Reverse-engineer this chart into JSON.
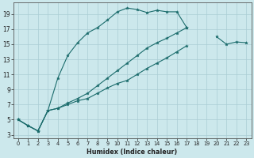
{
  "xlabel": "Humidex (Indice chaleur)",
  "bg_color": "#cce8ec",
  "grid_color": "#aacdd4",
  "line_color": "#1a6b6b",
  "xlim": [
    -0.5,
    23.5
  ],
  "ylim": [
    2.5,
    20.5
  ],
  "yticks": [
    3,
    5,
    7,
    9,
    11,
    13,
    15,
    17,
    19
  ],
  "xticks": [
    0,
    1,
    2,
    3,
    4,
    5,
    6,
    7,
    8,
    9,
    10,
    11,
    12,
    13,
    14,
    15,
    16,
    17,
    18,
    19,
    20,
    21,
    22,
    23
  ],
  "line1_y": [
    5.0,
    4.2,
    3.5,
    6.2,
    10.5,
    13.5,
    15.2,
    16.5,
    17.2,
    18.2,
    19.3,
    19.8,
    19.6,
    19.2,
    19.5,
    19.3,
    19.3,
    17.2,
    null,
    null,
    16.0,
    15.0,
    15.3,
    15.2
  ],
  "line2_y": [
    5.0,
    4.2,
    3.5,
    6.2,
    6.5,
    7.0,
    7.5,
    7.8,
    8.5,
    9.2,
    9.8,
    10.2,
    11.0,
    11.8,
    12.5,
    13.2,
    14.0,
    14.8,
    null,
    null,
    null,
    null,
    null,
    null
  ],
  "line3_y": [
    5.0,
    4.2,
    3.5,
    6.2,
    6.5,
    7.2,
    7.8,
    8.5,
    9.5,
    10.5,
    11.5,
    12.5,
    13.5,
    14.5,
    15.2,
    15.8,
    16.5,
    17.2,
    null,
    null,
    null,
    null,
    null,
    null
  ],
  "xlabel_fontsize": 5.8,
  "tick_fontsize_x": 4.8,
  "tick_fontsize_y": 5.5
}
